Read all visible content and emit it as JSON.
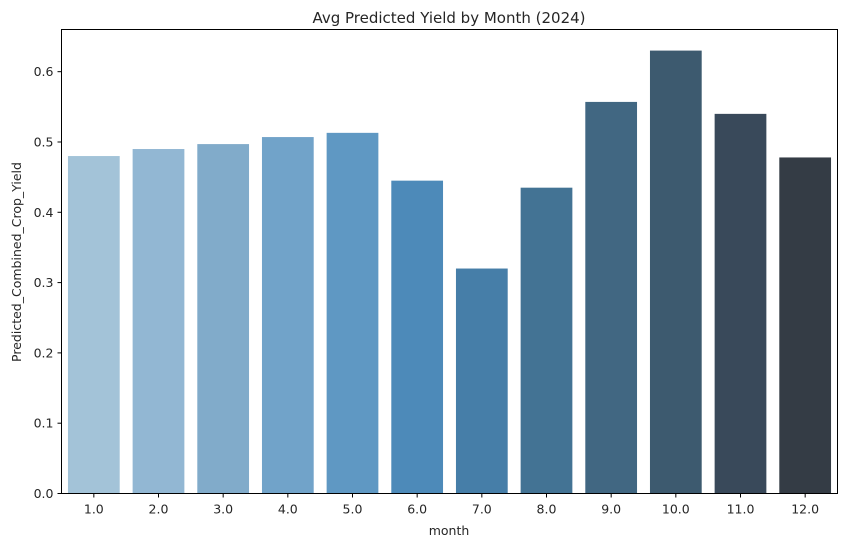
{
  "chart_data": {
    "type": "bar",
    "title": "Avg Predicted Yield by Month (2024)",
    "xlabel": "month",
    "ylabel": "Predicted_Combined_Crop_Yield",
    "categories": [
      "1.0",
      "2.0",
      "3.0",
      "4.0",
      "5.0",
      "6.0",
      "7.0",
      "8.0",
      "9.0",
      "10.0",
      "11.0",
      "12.0"
    ],
    "values": [
      0.48,
      0.49,
      0.497,
      0.507,
      0.513,
      0.445,
      0.32,
      0.435,
      0.557,
      0.63,
      0.54,
      0.478
    ],
    "colors": [
      "#a3c3d8",
      "#92b7d3",
      "#81abca",
      "#71a3c9",
      "#5f98c3",
      "#4d8ab9",
      "#467ea8",
      "#437394",
      "#416782",
      "#3d5a6f",
      "#39495a",
      "#343c45"
    ],
    "yticks": [
      "0.0",
      "0.1",
      "0.2",
      "0.3",
      "0.4",
      "0.5",
      "0.6"
    ],
    "ylim": [
      0,
      0.66
    ],
    "grid": false,
    "legend": "none"
  }
}
